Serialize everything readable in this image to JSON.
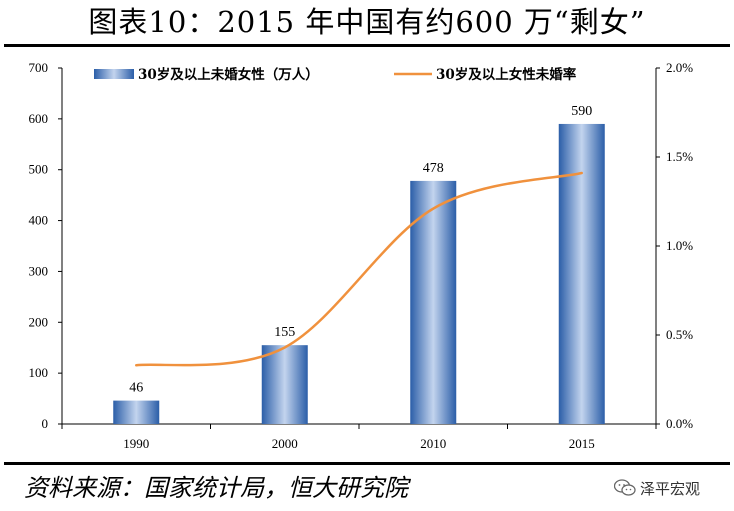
{
  "title": "图表10：2015 年中国有约600 万“剩女”",
  "source": "资料来源：国家统计局，恒大研究院",
  "watermark": {
    "label": "泽平宏观",
    "icon": "wechat-icon"
  },
  "colors": {
    "bar_dark": "#2b5ea8",
    "bar_light": "#c3d4ee",
    "line": "#f0913d",
    "axis": "#000000"
  },
  "chart_data": {
    "type": "bar+line",
    "categories": [
      "1990",
      "2000",
      "2010",
      "2015"
    ],
    "series": [
      {
        "name": "30岁及以上未婚女性（万人）",
        "type": "bar",
        "axis": "left",
        "values": [
          46,
          155,
          478,
          590
        ]
      },
      {
        "name": "30岁及以上女性未婚率",
        "type": "line",
        "axis": "right",
        "values": [
          0.0033,
          0.0043,
          0.0121,
          0.0141
        ]
      }
    ],
    "left_axis": {
      "min": 0,
      "max": 700,
      "step": 100,
      "ticks": [
        "0",
        "100",
        "200",
        "300",
        "400",
        "500",
        "600",
        "700"
      ]
    },
    "right_axis": {
      "min": 0,
      "max": 0.02,
      "step": 0.005,
      "ticks": [
        "0.0%",
        "0.5%",
        "1.0%",
        "1.5%",
        "2.0%"
      ]
    },
    "data_labels": [
      "46",
      "155",
      "478",
      "590"
    ],
    "legend_position": "top"
  }
}
